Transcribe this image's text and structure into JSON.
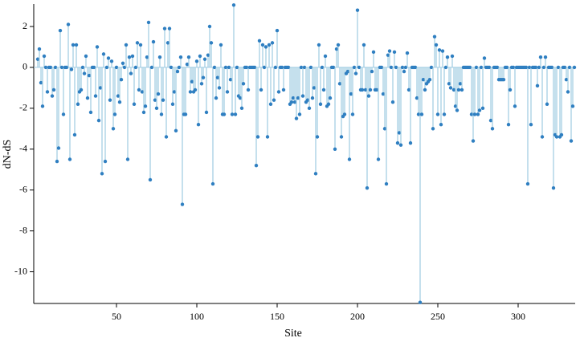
{
  "chart_data": {
    "type": "lollipop",
    "x_label": "Site",
    "y_label": "dN-dS",
    "stem_color": "#9ecae1",
    "color": "#2f7fc1",
    "baseline_color": "#9ecae1",
    "xlim": [
      0,
      335.5
    ],
    "xticks": [
      50,
      100,
      150,
      200,
      250,
      300
    ],
    "ylim": [
      -11.55,
      3.1
    ],
    "yticks": [
      2,
      0,
      -2,
      -4,
      -6,
      -8,
      -10
    ],
    "x": [
      1,
      2,
      3,
      4,
      5,
      6,
      7,
      8,
      9,
      10,
      11,
      12,
      13,
      14,
      15,
      16,
      17,
      18,
      19,
      20,
      21,
      22,
      23,
      24,
      25,
      26,
      27,
      28,
      29,
      30,
      31,
      32,
      33,
      34,
      35,
      36,
      37,
      38,
      39,
      40,
      41,
      42,
      43,
      44,
      45,
      46,
      47,
      48,
      49,
      50,
      51,
      52,
      53,
      54,
      55,
      56,
      57,
      58,
      59,
      60,
      61,
      62,
      63,
      64,
      65,
      66,
      67,
      68,
      69,
      70,
      71,
      72,
      73,
      74,
      75,
      76,
      77,
      78,
      79,
      80,
      81,
      82,
      83,
      84,
      85,
      86,
      87,
      88,
      89,
      90,
      91,
      92,
      93,
      94,
      95,
      96,
      97,
      98,
      99,
      100,
      101,
      102,
      103,
      104,
      105,
      106,
      107,
      108,
      109,
      110,
      111,
      112,
      113,
      114,
      115,
      116,
      117,
      118,
      119,
      120,
      121,
      122,
      123,
      124,
      125,
      126,
      127,
      128,
      129,
      130,
      131,
      132,
      133,
      134,
      135,
      136,
      137,
      138,
      139,
      140,
      141,
      142,
      143,
      144,
      145,
      146,
      147,
      148,
      149,
      150,
      151,
      152,
      153,
      154,
      155,
      156,
      157,
      158,
      159,
      160,
      161,
      162,
      163,
      164,
      165,
      166,
      167,
      168,
      169,
      170,
      171,
      172,
      173,
      174,
      175,
      176,
      177,
      178,
      179,
      180,
      181,
      182,
      183,
      184,
      185,
      186,
      187,
      188,
      189,
      190,
      191,
      192,
      193,
      194,
      195,
      196,
      197,
      198,
      199,
      200,
      201,
      202,
      203,
      204,
      205,
      206,
      207,
      208,
      209,
      210,
      211,
      212,
      213,
      214,
      215,
      216,
      217,
      218,
      219,
      220,
      221,
      222,
      223,
      224,
      225,
      226,
      227,
      228,
      229,
      230,
      231,
      232,
      233,
      234,
      235,
      236,
      237,
      238,
      239,
      240,
      241,
      242,
      243,
      244,
      245,
      246,
      247,
      248,
      249,
      250,
      251,
      252,
      253,
      254,
      255,
      256,
      257,
      258,
      259,
      260,
      261,
      262,
      263,
      264,
      265,
      266,
      267,
      268,
      269,
      270,
      271,
      272,
      273,
      274,
      275,
      276,
      277,
      278,
      279,
      280,
      281,
      282,
      283,
      284,
      285,
      286,
      287,
      288,
      289,
      290,
      291,
      292,
      293,
      294,
      295,
      296,
      297,
      298,
      299,
      300,
      301,
      302,
      303,
      304,
      305,
      306,
      307,
      308,
      309,
      310,
      311,
      312,
      313,
      314,
      315,
      316,
      317,
      318,
      319,
      320,
      321,
      322,
      323,
      324,
      325,
      326,
      327,
      328,
      329,
      330,
      331,
      332,
      333,
      334,
      335
    ],
    "values": [
      0.4,
      0.9,
      -0.75,
      -1.9,
      0.55,
      0,
      -1.2,
      0,
      0,
      -1.4,
      -1.1,
      0,
      -4.6,
      -3.95,
      1.8,
      0,
      -2.3,
      0,
      0,
      2.1,
      -4.5,
      -0.1,
      1.1,
      -3.3,
      1.1,
      -1.8,
      -1.2,
      -1.1,
      0,
      -0.3,
      0.55,
      -1.5,
      -0.4,
      -2.2,
      0,
      0,
      -1.4,
      1.0,
      -2.6,
      -1.0,
      -5.2,
      0.65,
      -4.6,
      0,
      0.45,
      -1.6,
      0.3,
      -3.0,
      -2.3,
      0,
      -1.4,
      -1.7,
      -0.6,
      0.2,
      0,
      1.1,
      -4.5,
      0.5,
      -0.3,
      0.55,
      -1.8,
      0,
      1.2,
      -1.1,
      1.1,
      -1.2,
      -2.2,
      -1.9,
      0.5,
      2.2,
      -5.5,
      0,
      1.25,
      -1.6,
      -2.0,
      -1.3,
      0.5,
      -2.3,
      -1.6,
      1.9,
      -3.4,
      1.2,
      1.9,
      0,
      -1.8,
      -1.2,
      -3.1,
      -0.2,
      0,
      0.5,
      -6.7,
      -2.3,
      -2.3,
      0.15,
      0.5,
      -1.2,
      -0.7,
      -1.2,
      -1.1,
      0.3,
      -2.8,
      0.55,
      -0.8,
      -0.5,
      0.4,
      -2.2,
      0.6,
      2.0,
      1.2,
      -5.7,
      0,
      -1.5,
      -0.5,
      -1.0,
      1.1,
      -2.3,
      -2.3,
      0,
      -1.2,
      0,
      -0.6,
      -2.3,
      3.05,
      -2.3,
      0,
      -1.4,
      -1.5,
      -2.0,
      -0.8,
      0,
      0,
      -1.1,
      0,
      0,
      0,
      0,
      -4.8,
      -3.4,
      1.3,
      -1.1,
      1.1,
      0,
      1.0,
      -3.4,
      1.1,
      -1.8,
      1.2,
      -1.6,
      0,
      1.8,
      -1.2,
      0,
      0,
      -1.1,
      0,
      0,
      0,
      -1.8,
      -1.7,
      -1.5,
      -1.7,
      -2.5,
      -1.5,
      -2.3,
      0,
      -1.4,
      0,
      -1.7,
      -1.6,
      -2.0,
      0,
      -1.5,
      -1.0,
      -5.2,
      -3.4,
      1.1,
      -1.8,
      0,
      -1.1,
      0.55,
      -1.9,
      -1.8,
      -1.5,
      0,
      0,
      -4.0,
      0.9,
      1.1,
      -0.8,
      -3.4,
      -2.4,
      -2.3,
      -0.3,
      -0.2,
      -4.5,
      -1.3,
      -2.3,
      0,
      -0.3,
      2.8,
      0,
      -1.1,
      -1.1,
      1.1,
      -1.1,
      -5.9,
      -1.4,
      -1.1,
      -0.2,
      0.75,
      -1.1,
      -1.1,
      -4.5,
      0,
      0,
      -1.3,
      -3.0,
      -5.7,
      0.6,
      0.8,
      0,
      -1.7,
      0.75,
      0,
      -3.7,
      -3.2,
      -3.8,
      0,
      -0.2,
      0,
      0.7,
      -1.1,
      -3.7,
      0,
      0,
      0,
      -1.5,
      -2.3,
      -11.5,
      -2.3,
      -0.6,
      -1.1,
      -0.8,
      -0.7,
      -0.6,
      0,
      -3.0,
      1.5,
      1.1,
      -2.3,
      0.85,
      -2.8,
      0.8,
      -2.3,
      0,
      0.5,
      -0.8,
      -1.0,
      0.55,
      -1.1,
      -1.9,
      -2.1,
      -1.1,
      -0.8,
      -1.1,
      0,
      0,
      0,
      0,
      0,
      -2.3,
      -3.6,
      -2.3,
      0,
      -2.3,
      -2.1,
      0,
      -2.0,
      0.45,
      0,
      0,
      0,
      -2.6,
      -3.0,
      0,
      0,
      0,
      -0.6,
      -0.6,
      -0.6,
      -0.6,
      0,
      0,
      -2.8,
      -1.1,
      0,
      0,
      -1.9,
      0,
      0,
      0,
      0,
      0,
      0,
      0,
      -5.7,
      0,
      -2.8,
      0,
      0,
      0,
      -0.9,
      0,
      0.5,
      -3.4,
      0,
      0.5,
      -1.8,
      0,
      0,
      0,
      -5.9,
      -3.3,
      -3.4,
      0,
      -3.4,
      -3.3,
      0,
      0,
      -0.6,
      -1.2,
      0,
      -3.6,
      -1.9,
      0
    ]
  }
}
